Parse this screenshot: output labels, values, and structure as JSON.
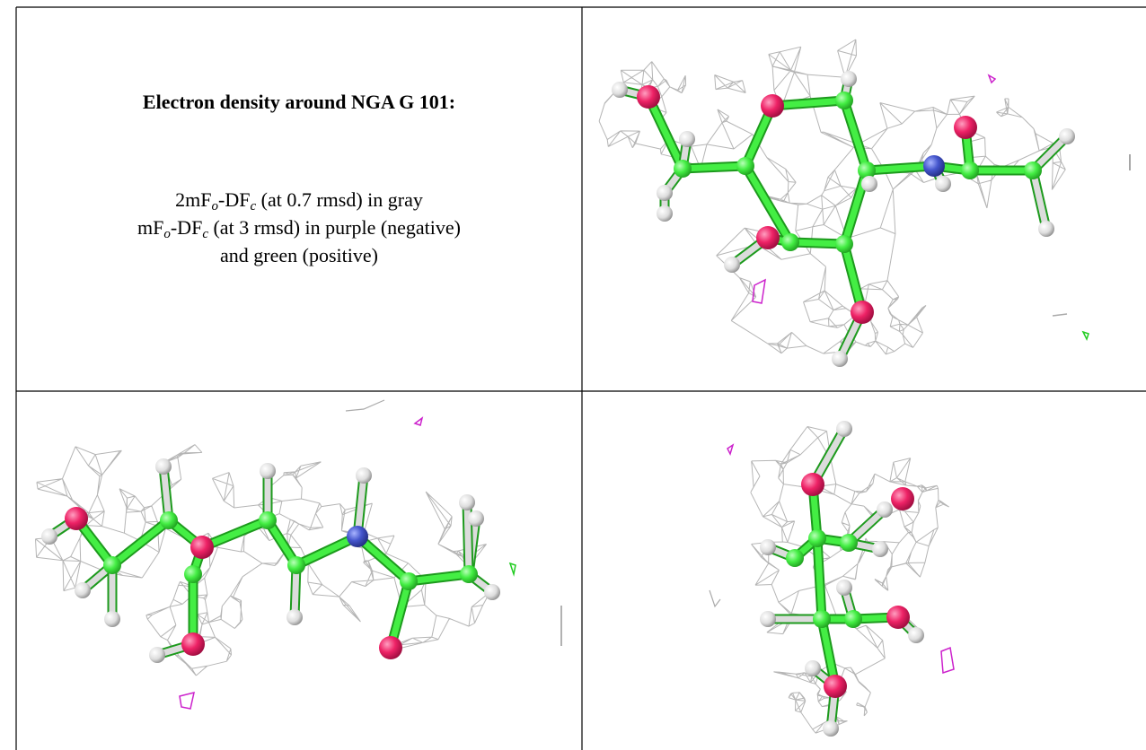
{
  "figure": {
    "title": "Electron density around NGA G 101:",
    "caption_lines": [
      [
        "2mF",
        "o",
        "-DF",
        "c",
        " (at 0.7 rmsd) in gray"
      ],
      [
        "mF",
        "o",
        "-DF",
        "c",
        " (at 3 rmsd) in purple (negative)"
      ],
      [
        "and green (positive)"
      ]
    ]
  }
}
